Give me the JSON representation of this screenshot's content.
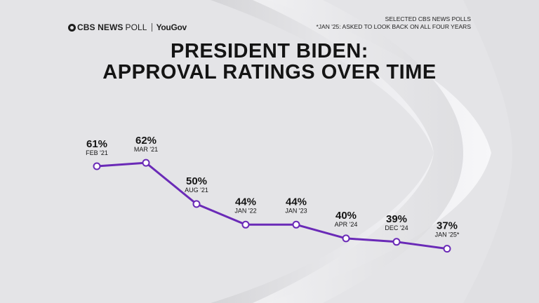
{
  "header": {
    "brand_cbs": "CBS NEWS",
    "brand_poll": "POLL",
    "brand_partner": "YouGov",
    "note_line1": "SELECTED CBS NEWS POLLS",
    "note_line2": "*JAN '25: ASKED TO LOOK BACK ON ALL FOUR YEARS"
  },
  "colors": {
    "line": "#6a2ab7",
    "text": "#141414",
    "background": "#e3e3e6"
  },
  "chart_data": {
    "type": "line",
    "title_line1": "PRESIDENT BIDEN:",
    "title_line2": "APPROVAL RATINGS OVER TIME",
    "categories": [
      "FEB '21",
      "MAR '21",
      "AUG '21",
      "JAN '22",
      "JAN '23",
      "APR '24",
      "DEC '24",
      "JAN '25*"
    ],
    "series": [
      {
        "values": [
          61,
          62,
          50,
          44,
          44,
          40,
          39,
          37
        ]
      }
    ],
    "labels": [
      "61%",
      "62%",
      "50%",
      "44%",
      "44%",
      "40%",
      "39%",
      "37%"
    ],
    "unit": "%",
    "grid": false,
    "legend": "none"
  }
}
